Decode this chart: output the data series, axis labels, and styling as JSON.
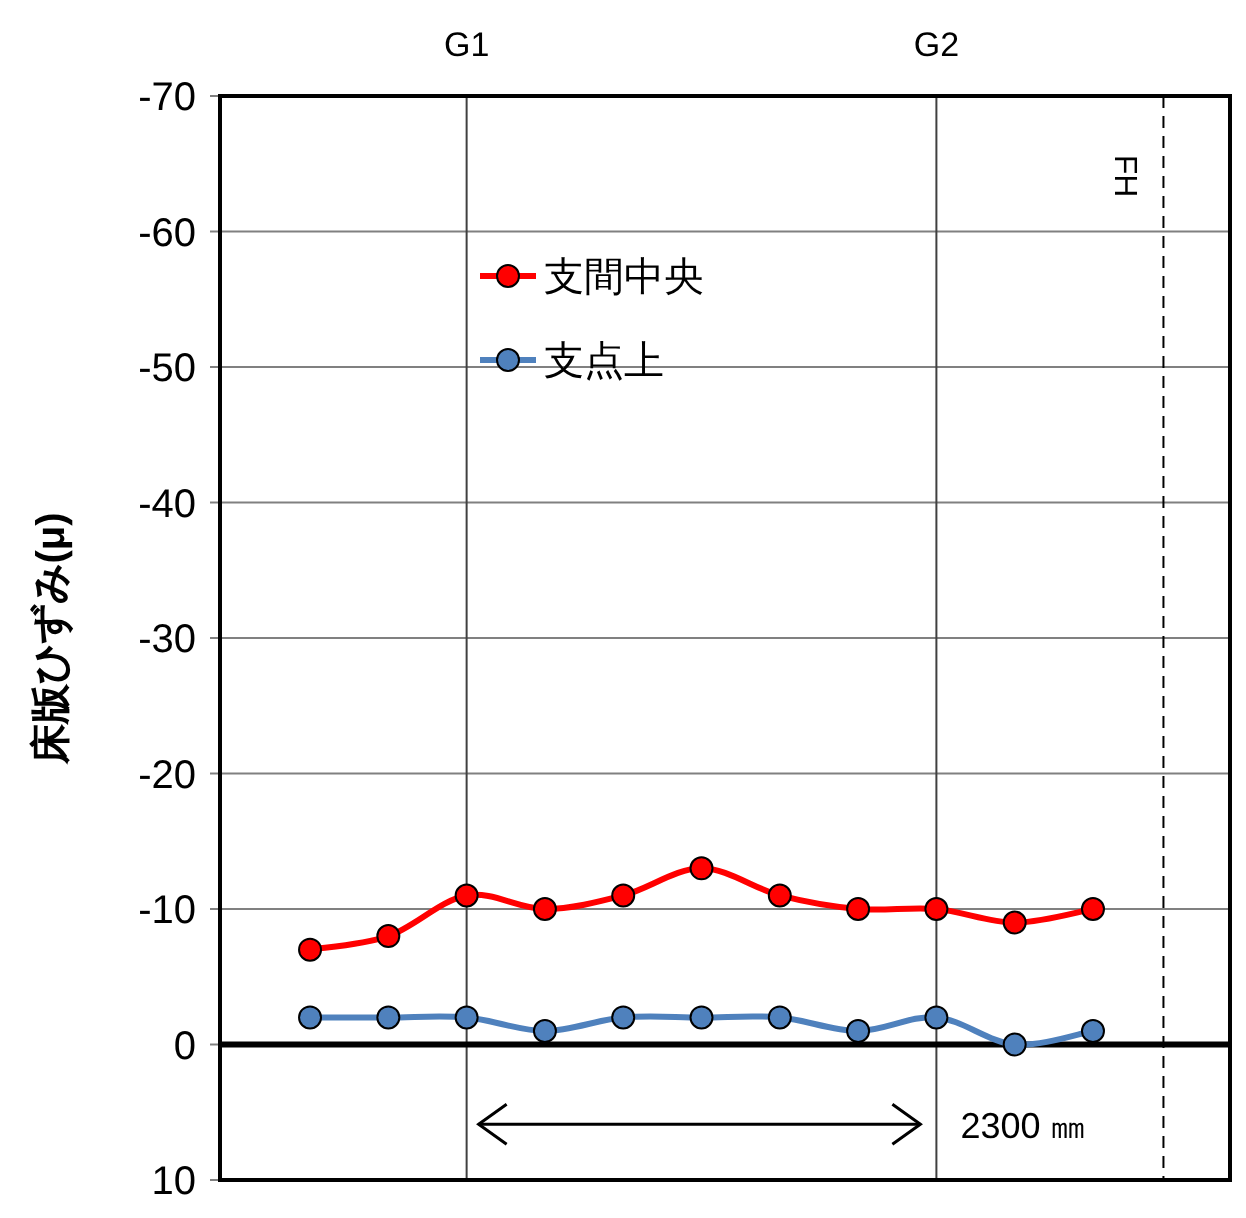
{
  "chart_data": {
    "type": "line",
    "ylabel": "床版ひずみ(μ)",
    "categories": [
      null,
      null,
      "G1",
      null,
      null,
      null,
      null,
      null,
      "G2",
      null,
      null
    ],
    "ylim": [
      10,
      -70
    ],
    "yticks": [
      -70,
      -60,
      -50,
      -40,
      -30,
      -20,
      -10,
      0,
      10
    ],
    "series": [
      {
        "name": "支間中央",
        "color": "#ff0000",
        "values": [
          -7,
          -8,
          -11,
          -10,
          -11,
          -13,
          -11,
          -10,
          -10,
          -9,
          -10
        ]
      },
      {
        "name": "支点上",
        "color": "#4f81bd",
        "values": [
          -2,
          -2,
          -2,
          -1,
          -2,
          -2,
          -2,
          -1,
          -2,
          0,
          -1
        ]
      }
    ],
    "ref_lines": [
      {
        "axis": "y",
        "value": 0,
        "color": "#000000"
      },
      {
        "axis": "x",
        "label": "FH",
        "color": "#000000",
        "line_style": "dashed"
      }
    ],
    "annotations": [
      "2300 ㎜"
    ],
    "grid": true,
    "legend": "top left",
    "marker": "circle",
    "line_style": "solid"
  }
}
